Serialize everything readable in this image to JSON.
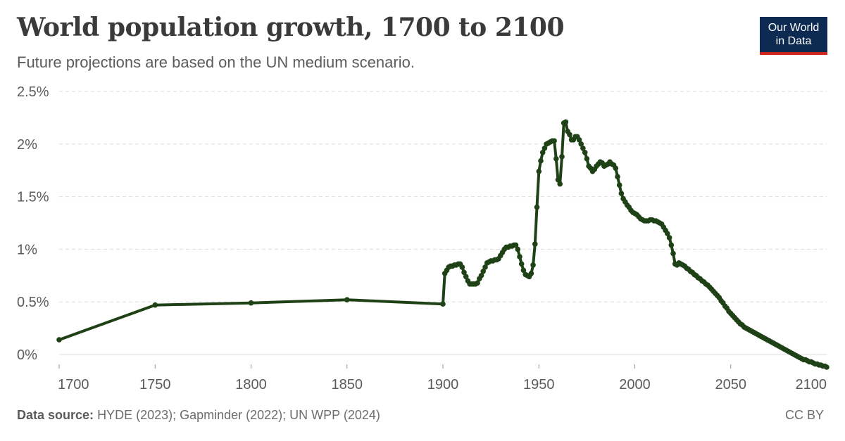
{
  "header": {
    "title": "World population growth, 1700 to 2100",
    "subtitle": "Future projections are based on the UN medium scenario."
  },
  "logo": {
    "line1": "Our World",
    "line2": "in Data"
  },
  "footer": {
    "source_label": "Data source:",
    "source_text": "HYDE (2023); Gapminder (2022); UN WPP (2024)",
    "license": "CC BY"
  },
  "colors": {
    "line": "#1e4116",
    "grid": "#dddddd",
    "logo_bg": "#0d2b52",
    "logo_accent": "#ce261e"
  },
  "chart_data": {
    "type": "line",
    "title": "World population growth, 1700 to 2100",
    "subtitle": "Future projections are based on the UN medium scenario.",
    "xlim": [
      1700,
      2100
    ],
    "ylim": [
      -0.1,
      2.5
    ],
    "x_ticks": [
      {
        "value": 1700,
        "label": "1700"
      },
      {
        "value": 1750,
        "label": "1750"
      },
      {
        "value": 1800,
        "label": "1800"
      },
      {
        "value": 1850,
        "label": "1850"
      },
      {
        "value": 1900,
        "label": "1900"
      },
      {
        "value": 1950,
        "label": "1950"
      },
      {
        "value": 2000,
        "label": "2000"
      },
      {
        "value": 2050,
        "label": "2050"
      },
      {
        "value": 2100,
        "label": "2100"
      }
    ],
    "y_ticks": [
      {
        "value": 0,
        "label": "0%"
      },
      {
        "value": 0.5,
        "label": "0.5%"
      },
      {
        "value": 1,
        "label": "1%"
      },
      {
        "value": 1.5,
        "label": "1.5%"
      },
      {
        "value": 2,
        "label": "2%"
      },
      {
        "value": 2.5,
        "label": "2.5%"
      }
    ],
    "grid": true,
    "series": [
      {
        "color": "#1e4116",
        "points": [
          [
            1700,
            0.14
          ],
          [
            1750,
            0.47
          ],
          [
            1800,
            0.49
          ],
          [
            1850,
            0.52
          ],
          [
            1900,
            0.48
          ],
          [
            1901,
            0.77
          ],
          [
            1902,
            0.8
          ],
          [
            1903,
            0.83
          ],
          [
            1904,
            0.84
          ],
          [
            1905,
            0.84
          ],
          [
            1906,
            0.85
          ],
          [
            1907,
            0.85
          ],
          [
            1908,
            0.86
          ],
          [
            1909,
            0.86
          ],
          [
            1910,
            0.83
          ],
          [
            1911,
            0.78
          ],
          [
            1912,
            0.74
          ],
          [
            1913,
            0.7
          ],
          [
            1914,
            0.67
          ],
          [
            1915,
            0.67
          ],
          [
            1916,
            0.67
          ],
          [
            1917,
            0.67
          ],
          [
            1918,
            0.68
          ],
          [
            1919,
            0.72
          ],
          [
            1920,
            0.75
          ],
          [
            1921,
            0.79
          ],
          [
            1922,
            0.83
          ],
          [
            1923,
            0.87
          ],
          [
            1924,
            0.88
          ],
          [
            1925,
            0.89
          ],
          [
            1926,
            0.89
          ],
          [
            1927,
            0.9
          ],
          [
            1928,
            0.9
          ],
          [
            1929,
            0.91
          ],
          [
            1930,
            0.94
          ],
          [
            1931,
            0.97
          ],
          [
            1932,
            1.0
          ],
          [
            1933,
            1.02
          ],
          [
            1934,
            1.02
          ],
          [
            1935,
            1.03
          ],
          [
            1936,
            1.03
          ],
          [
            1937,
            1.04
          ],
          [
            1938,
            1.04
          ],
          [
            1939,
            1.0
          ],
          [
            1940,
            0.93
          ],
          [
            1941,
            0.86
          ],
          [
            1942,
            0.8
          ],
          [
            1943,
            0.76
          ],
          [
            1944,
            0.75
          ],
          [
            1945,
            0.74
          ],
          [
            1946,
            0.77
          ],
          [
            1947,
            0.85
          ],
          [
            1948,
            1.05
          ],
          [
            1949,
            1.4
          ],
          [
            1950,
            1.74
          ],
          [
            1951,
            1.84
          ],
          [
            1952,
            1.92
          ],
          [
            1953,
            1.96
          ],
          [
            1954,
            2.0
          ],
          [
            1955,
            2.01
          ],
          [
            1956,
            2.02
          ],
          [
            1957,
            2.03
          ],
          [
            1958,
            2.03
          ],
          [
            1959,
            1.86
          ],
          [
            1960,
            1.66
          ],
          [
            1961,
            1.62
          ],
          [
            1962,
            1.88
          ],
          [
            1963,
            2.2
          ],
          [
            1964,
            2.21
          ],
          [
            1965,
            2.12
          ],
          [
            1966,
            2.09
          ],
          [
            1967,
            2.04
          ],
          [
            1968,
            2.04
          ],
          [
            1969,
            2.07
          ],
          [
            1970,
            2.07
          ],
          [
            1971,
            2.04
          ],
          [
            1972,
            2.0
          ],
          [
            1973,
            1.96
          ],
          [
            1974,
            1.92
          ],
          [
            1975,
            1.86
          ],
          [
            1976,
            1.79
          ],
          [
            1977,
            1.77
          ],
          [
            1978,
            1.74
          ],
          [
            1979,
            1.76
          ],
          [
            1980,
            1.79
          ],
          [
            1981,
            1.81
          ],
          [
            1982,
            1.83
          ],
          [
            1983,
            1.82
          ],
          [
            1984,
            1.79
          ],
          [
            1985,
            1.8
          ],
          [
            1986,
            1.81
          ],
          [
            1987,
            1.83
          ],
          [
            1988,
            1.81
          ],
          [
            1989,
            1.8
          ],
          [
            1990,
            1.77
          ],
          [
            1991,
            1.69
          ],
          [
            1992,
            1.61
          ],
          [
            1993,
            1.53
          ],
          [
            1994,
            1.48
          ],
          [
            1995,
            1.45
          ],
          [
            1996,
            1.42
          ],
          [
            1997,
            1.4
          ],
          [
            1998,
            1.37
          ],
          [
            1999,
            1.35
          ],
          [
            2000,
            1.34
          ],
          [
            2001,
            1.33
          ],
          [
            2002,
            1.31
          ],
          [
            2003,
            1.29
          ],
          [
            2004,
            1.28
          ],
          [
            2005,
            1.27
          ],
          [
            2006,
            1.27
          ],
          [
            2007,
            1.27
          ],
          [
            2008,
            1.28
          ],
          [
            2009,
            1.28
          ],
          [
            2010,
            1.27
          ],
          [
            2011,
            1.27
          ],
          [
            2012,
            1.26
          ],
          [
            2013,
            1.25
          ],
          [
            2014,
            1.24
          ],
          [
            2015,
            1.21
          ],
          [
            2016,
            1.18
          ],
          [
            2017,
            1.15
          ],
          [
            2018,
            1.11
          ],
          [
            2019,
            1.04
          ],
          [
            2020,
            0.96
          ],
          [
            2021,
            0.86
          ],
          [
            2022,
            0.85
          ],
          [
            2023,
            0.87
          ],
          [
            2024,
            0.86
          ],
          [
            2025,
            0.85
          ],
          [
            2026,
            0.84
          ],
          [
            2027,
            0.82
          ],
          [
            2028,
            0.81
          ],
          [
            2029,
            0.79
          ],
          [
            2030,
            0.78
          ],
          [
            2031,
            0.76
          ],
          [
            2032,
            0.75
          ],
          [
            2033,
            0.73
          ],
          [
            2034,
            0.72
          ],
          [
            2035,
            0.7
          ],
          [
            2036,
            0.69
          ],
          [
            2037,
            0.67
          ],
          [
            2038,
            0.66
          ],
          [
            2039,
            0.64
          ],
          [
            2040,
            0.62
          ],
          [
            2041,
            0.6
          ],
          [
            2042,
            0.58
          ],
          [
            2043,
            0.56
          ],
          [
            2044,
            0.54
          ],
          [
            2045,
            0.51
          ],
          [
            2046,
            0.49
          ],
          [
            2047,
            0.46
          ],
          [
            2048,
            0.44
          ],
          [
            2049,
            0.41
          ],
          [
            2050,
            0.39
          ],
          [
            2051,
            0.37
          ],
          [
            2052,
            0.35
          ],
          [
            2053,
            0.33
          ],
          [
            2054,
            0.31
          ],
          [
            2055,
            0.29
          ],
          [
            2056,
            0.28
          ],
          [
            2057,
            0.26
          ],
          [
            2058,
            0.25
          ],
          [
            2059,
            0.24
          ],
          [
            2060,
            0.23
          ],
          [
            2061,
            0.22
          ],
          [
            2062,
            0.21
          ],
          [
            2063,
            0.2
          ],
          [
            2064,
            0.19
          ],
          [
            2065,
            0.18
          ],
          [
            2066,
            0.17
          ],
          [
            2067,
            0.16
          ],
          [
            2068,
            0.15
          ],
          [
            2069,
            0.14
          ],
          [
            2070,
            0.13
          ],
          [
            2071,
            0.12
          ],
          [
            2072,
            0.11
          ],
          [
            2073,
            0.1
          ],
          [
            2074,
            0.09
          ],
          [
            2075,
            0.08
          ],
          [
            2076,
            0.07
          ],
          [
            2077,
            0.06
          ],
          [
            2078,
            0.05
          ],
          [
            2079,
            0.04
          ],
          [
            2080,
            0.03
          ],
          [
            2081,
            0.02
          ],
          [
            2082,
            0.01
          ],
          [
            2083,
            0.0
          ],
          [
            2084,
            -0.01
          ],
          [
            2085,
            -0.02
          ],
          [
            2086,
            -0.03
          ],
          [
            2087,
            -0.04
          ],
          [
            2088,
            -0.05
          ],
          [
            2089,
            -0.05
          ],
          [
            2090,
            -0.06
          ],
          [
            2091,
            -0.07
          ],
          [
            2092,
            -0.07
          ],
          [
            2093,
            -0.08
          ],
          [
            2094,
            -0.09
          ],
          [
            2095,
            -0.09
          ],
          [
            2096,
            -0.1
          ],
          [
            2097,
            -0.1
          ],
          [
            2098,
            -0.11
          ],
          [
            2099,
            -0.11
          ],
          [
            2100,
            -0.12
          ]
        ]
      }
    ]
  }
}
